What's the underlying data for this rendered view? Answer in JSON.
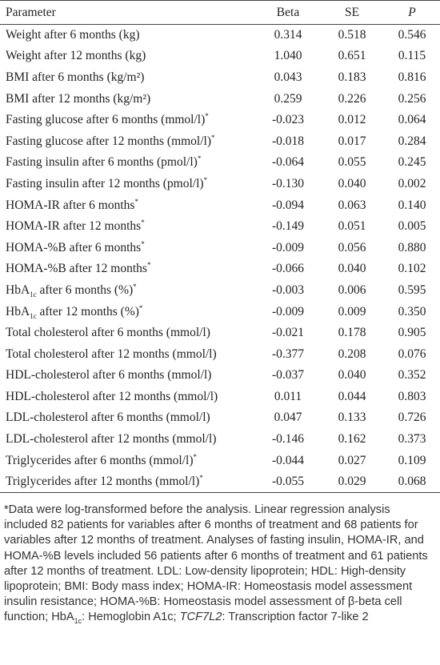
{
  "table": {
    "header": [
      "Parameter",
      "Beta",
      "SE",
      "P"
    ],
    "rows": [
      {
        "parameter": [
          {
            "text": "Weight after 6 months (kg)"
          }
        ],
        "beta": "0.314",
        "se": "0.518",
        "p": "0.546"
      },
      {
        "parameter": [
          {
            "text": "Weight after 12 months (kg)"
          }
        ],
        "beta": "1.040",
        "se": "0.651",
        "p": "0.115"
      },
      {
        "parameter": [
          {
            "text": "BMI after 6 months (kg/m²)"
          }
        ],
        "beta": "0.043",
        "se": "0.183",
        "p": "0.816"
      },
      {
        "parameter": [
          {
            "text": "BMI after 12 months (kg/m²)"
          }
        ],
        "beta": "0.259",
        "se": "0.226",
        "p": "0.256"
      },
      {
        "parameter": [
          {
            "text": "Fasting glucose after 6 months (mmol/l)"
          },
          {
            "text": "*",
            "style": "sup"
          }
        ],
        "beta": "-0.023",
        "se": "0.012",
        "p": "0.064"
      },
      {
        "parameter": [
          {
            "text": "Fasting glucose after 12 months (mmol/l)"
          },
          {
            "text": "*",
            "style": "sup"
          }
        ],
        "beta": "-0.018",
        "se": "0.017",
        "p": "0.284"
      },
      {
        "parameter": [
          {
            "text": "Fasting insulin after 6 months (pmol/l)"
          },
          {
            "text": "*",
            "style": "sup"
          }
        ],
        "beta": "-0.064",
        "se": "0.055",
        "p": "0.245"
      },
      {
        "parameter": [
          {
            "text": "Fasting insulin after 12 months (pmol/l)"
          },
          {
            "text": "*",
            "style": "sup"
          }
        ],
        "beta": "-0.130",
        "se": "0.040",
        "p": "0.002"
      },
      {
        "parameter": [
          {
            "text": "HOMA-IR after 6 months"
          },
          {
            "text": "*",
            "style": "sup"
          }
        ],
        "beta": "-0.094",
        "se": "0.063",
        "p": "0.140"
      },
      {
        "parameter": [
          {
            "text": "HOMA-IR after 12 months"
          },
          {
            "text": "*",
            "style": "sup"
          }
        ],
        "beta": "-0.149",
        "se": "0.051",
        "p": "0.005"
      },
      {
        "parameter": [
          {
            "text": "HOMA-%B after 6 months"
          },
          {
            "text": "*",
            "style": "sup"
          }
        ],
        "beta": "-0.009",
        "se": "0.056",
        "p": "0.880"
      },
      {
        "parameter": [
          {
            "text": "HOMA-%B after 12 months"
          },
          {
            "text": "*",
            "style": "sup"
          }
        ],
        "beta": "-0.066",
        "se": "0.040",
        "p": "0.102"
      },
      {
        "parameter": [
          {
            "text": "HbA"
          },
          {
            "text": "1c",
            "style": "sub"
          },
          {
            "text": " after 6 months (%)"
          },
          {
            "text": "*",
            "style": "sup"
          }
        ],
        "beta": "-0.003",
        "se": "0.006",
        "p": "0.595"
      },
      {
        "parameter": [
          {
            "text": "HbA"
          },
          {
            "text": "1c",
            "style": "sub"
          },
          {
            "text": " after 12 months (%)"
          },
          {
            "text": "*",
            "style": "sup"
          }
        ],
        "beta": "-0.009",
        "se": "0.009",
        "p": "0.350"
      },
      {
        "parameter": [
          {
            "text": "Total cholesterol after 6 months (mmol/l)"
          }
        ],
        "beta": "-0.021",
        "se": "0.178",
        "p": "0.905"
      },
      {
        "parameter": [
          {
            "text": "Total cholesterol after 12 months (mmol/l)"
          }
        ],
        "beta": "-0.377",
        "se": "0.208",
        "p": "0.076"
      },
      {
        "parameter": [
          {
            "text": "HDL-cholesterol after 6 months (mmol/l)"
          }
        ],
        "beta": "-0.037",
        "se": "0.040",
        "p": "0.352"
      },
      {
        "parameter": [
          {
            "text": "HDL-cholesterol after 12 months (mmol/l)"
          }
        ],
        "beta": "0.011",
        "se": "0.044",
        "p": "0.803"
      },
      {
        "parameter": [
          {
            "text": "LDL-cholesterol after 6 months (mmol/l)"
          }
        ],
        "beta": "0.047",
        "se": "0.133",
        "p": "0.726"
      },
      {
        "parameter": [
          {
            "text": "LDL-cholesterol after 12 months (mmol/l)"
          }
        ],
        "beta": "-0.146",
        "se": "0.162",
        "p": "0.373"
      },
      {
        "parameter": [
          {
            "text": "Triglycerides after 6 months (mmol/l)"
          },
          {
            "text": "*",
            "style": "sup"
          }
        ],
        "beta": "-0.044",
        "se": "0.027",
        "p": "0.109"
      },
      {
        "parameter": [
          {
            "text": "Triglycerides after 12 months (mmol/l)"
          },
          {
            "text": "*",
            "style": "sup"
          }
        ],
        "beta": "-0.055",
        "se": "0.029",
        "p": "0.068"
      }
    ]
  },
  "footnote": [
    {
      "text": "*Data were log-transformed before the analysis. Linear regression analysis included 82 patients for variables after 6 months of treatment and 68 patients for variables after 12 months of treatment. Analyses of fasting insulin, HOMA-IR, and HOMA-%B levels included 56 patients after 6 months of treatment and 61 patients after 12 months of treatment. LDL: Low-density lipoprotein; HDL: High-density lipoprotein; BMI: Body mass index; HOMA-IR: Homeostasis model assessment insulin resistance; HOMA-%B: Homeostasis model assessment of β-beta cell function; HbA"
    },
    {
      "text": "1c",
      "style": "sub"
    },
    {
      "text": ": Hemoglobin A1c; "
    },
    {
      "text": "TCF7L2",
      "style": "italic"
    },
    {
      "text": ": Transcription factor 7-like 2"
    }
  ]
}
